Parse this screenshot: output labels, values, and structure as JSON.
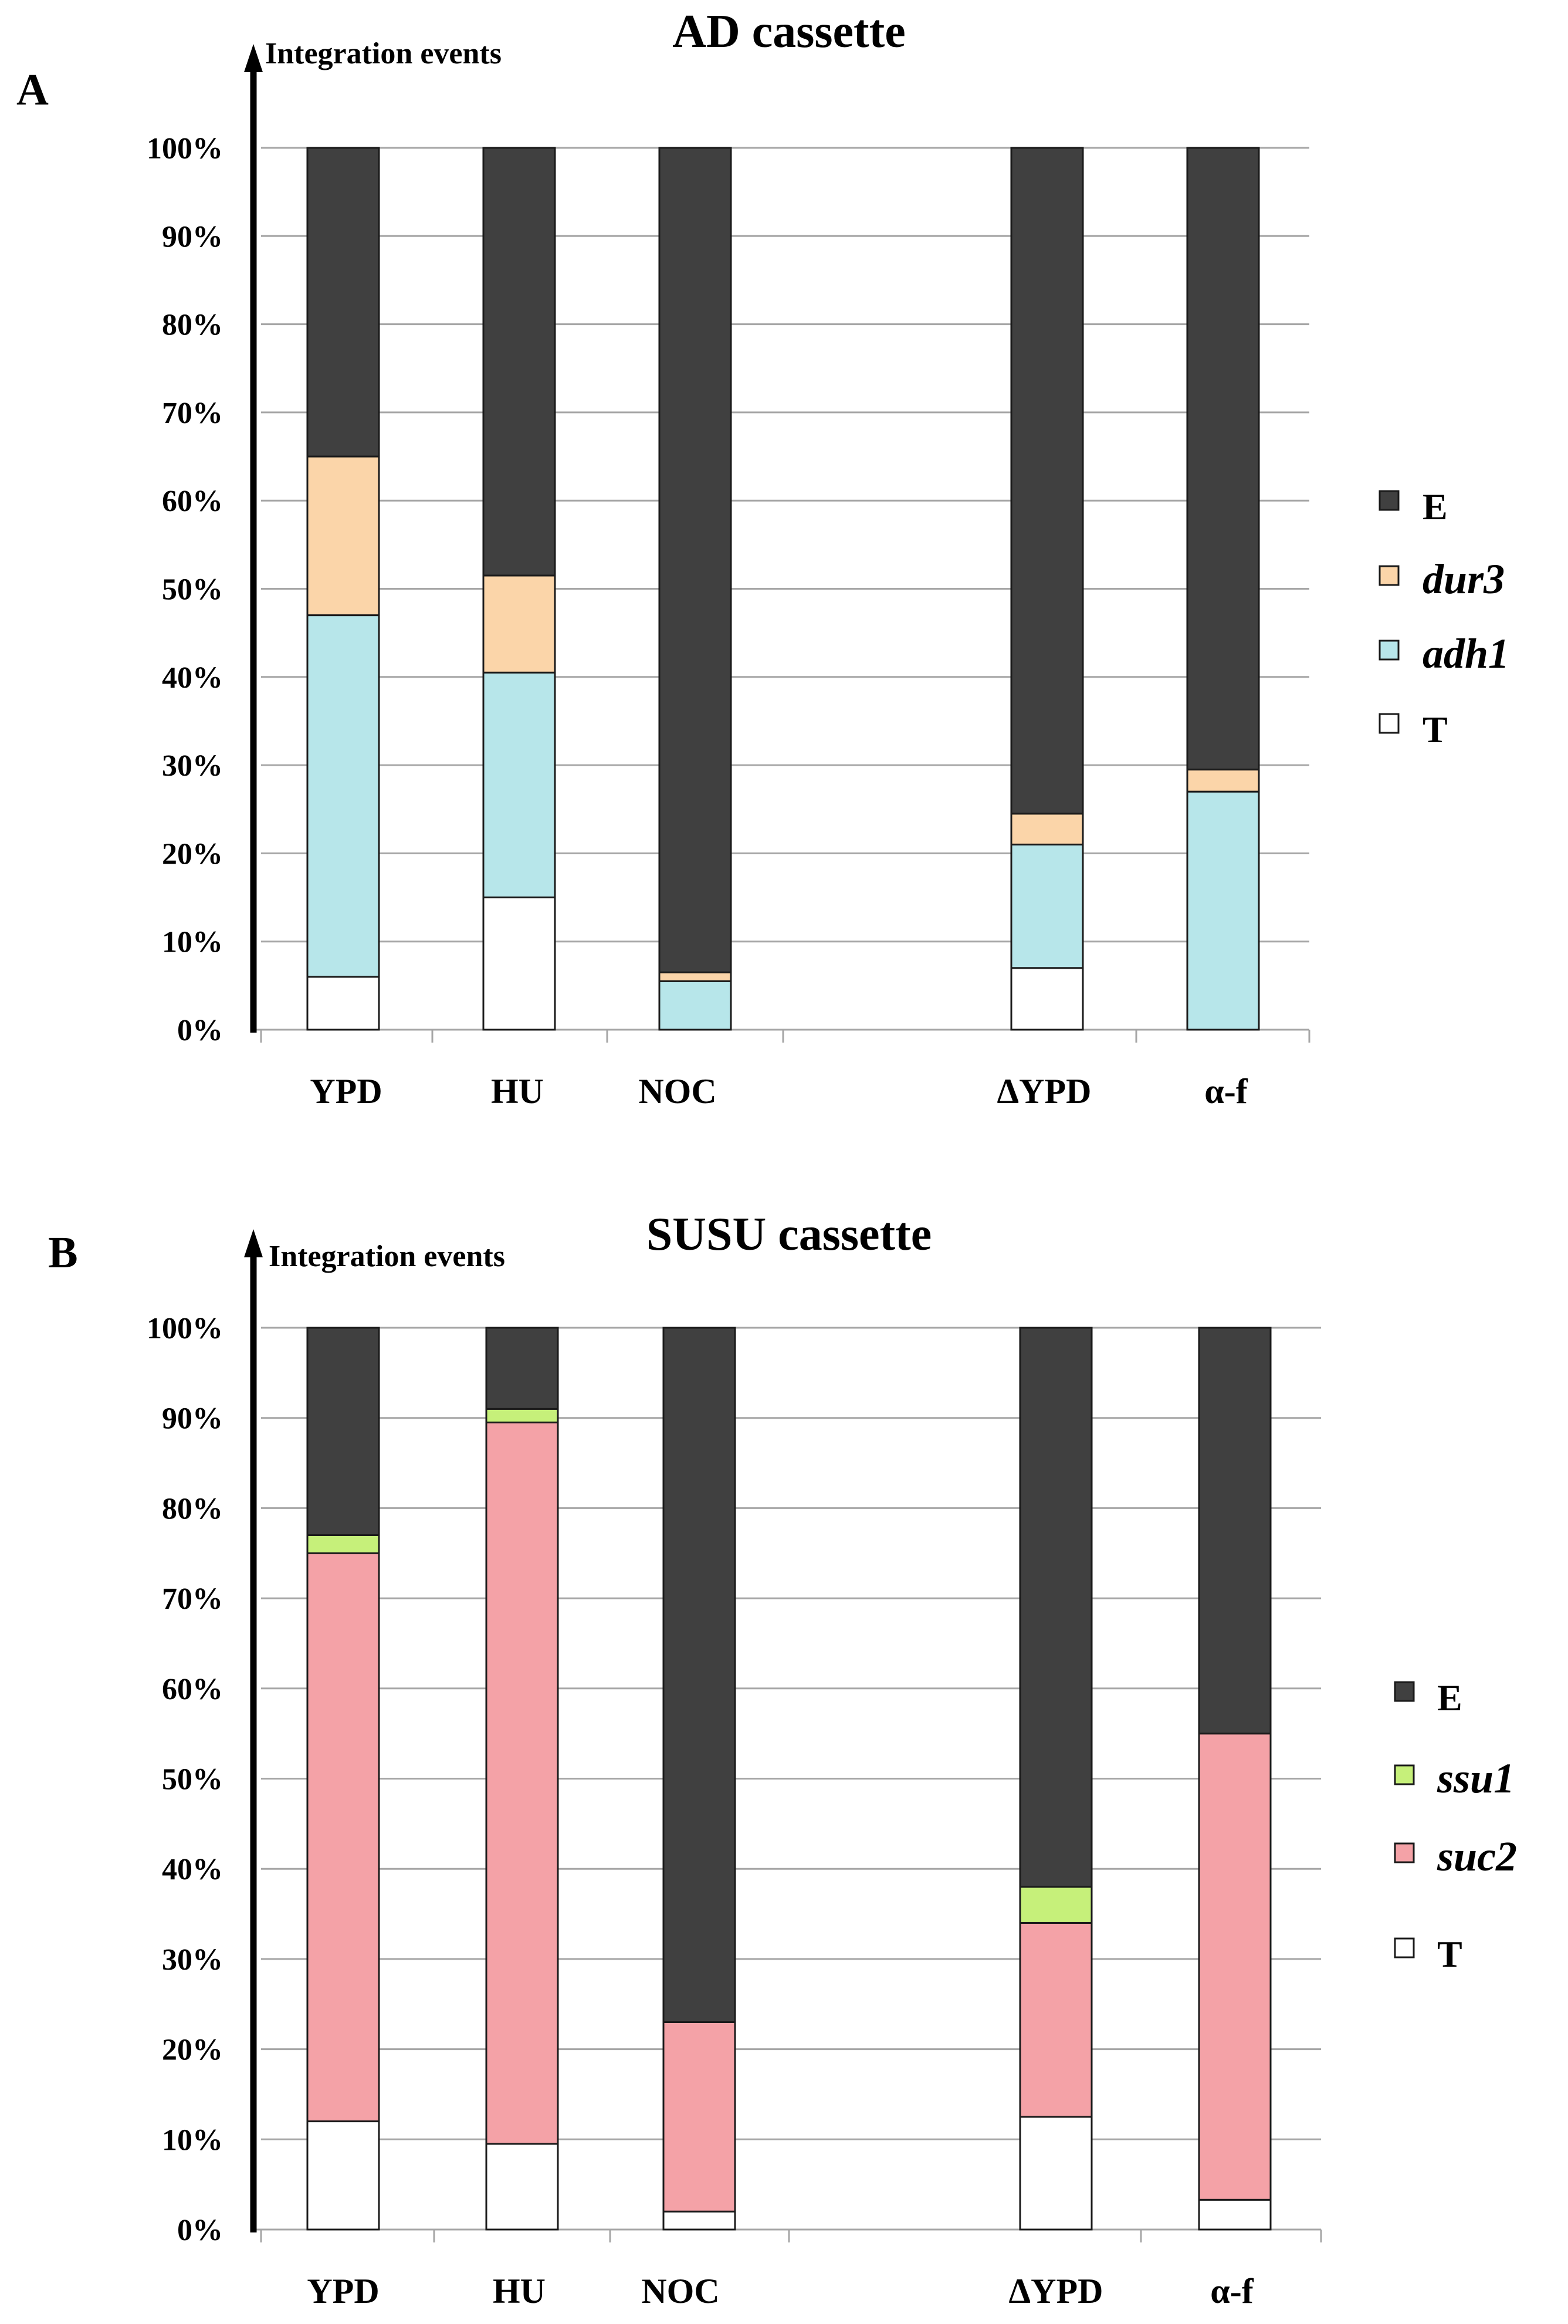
{
  "chart_data": [
    {
      "type": "stacked-bar",
      "panel": "A",
      "title": "AD cassette",
      "ylabel": "Integration events",
      "ylim": [
        0,
        100
      ],
      "yticks": [
        "0%",
        "10%",
        "20%",
        "30%",
        "40%",
        "50%",
        "60%",
        "70%",
        "80%",
        "90%",
        "100%"
      ],
      "categories": [
        "YPD",
        "HU",
        "NOC",
        "",
        "ΔYPD",
        "α-f"
      ],
      "series": [
        {
          "name": "T",
          "color": "#ffffff",
          "values": [
            6,
            15,
            0,
            null,
            7,
            0
          ]
        },
        {
          "name": "adh1",
          "color": "#b7e6ea",
          "values": [
            41,
            25.5,
            5.5,
            null,
            14,
            27
          ]
        },
        {
          "name": "dur3",
          "color": "#fbd5a9",
          "values": [
            18,
            11,
            1,
            null,
            3.5,
            2.5
          ]
        },
        {
          "name": "E",
          "color": "#404040",
          "values": [
            35,
            48.5,
            93.5,
            null,
            75.5,
            70.5
          ]
        }
      ],
      "legend": [
        {
          "label": "E",
          "style": "plain"
        },
        {
          "label": "dur3",
          "style": "italic"
        },
        {
          "label": "adh1",
          "style": "italic"
        },
        {
          "label": "T",
          "style": "plain"
        }
      ]
    },
    {
      "type": "stacked-bar",
      "panel": "B",
      "title": "SUSU cassette",
      "ylabel": "Integration events",
      "ylim": [
        0,
        100
      ],
      "yticks": [
        "0%",
        "10%",
        "20%",
        "30%",
        "40%",
        "50%",
        "60%",
        "70%",
        "80%",
        "90%",
        "100%"
      ],
      "categories": [
        "YPD",
        "HU",
        "NOC",
        "",
        "ΔYPD",
        "α-f"
      ],
      "series": [
        {
          "name": "T",
          "color": "#ffffff",
          "values": [
            12,
            9.5,
            2,
            null,
            12.5,
            3.3
          ]
        },
        {
          "name": "suc2",
          "color": "#f4a2a7",
          "values": [
            63,
            80,
            21,
            null,
            21.5,
            51.7
          ]
        },
        {
          "name": "ssu1",
          "color": "#c6f07a",
          "values": [
            2,
            1.5,
            0,
            null,
            4,
            0
          ]
        },
        {
          "name": "E",
          "color": "#404040",
          "values": [
            23,
            9,
            77,
            null,
            62,
            45
          ]
        }
      ],
      "legend": [
        {
          "label": "E",
          "style": "plain"
        },
        {
          "label": "ssu1",
          "style": "italic"
        },
        {
          "label": "suc2",
          "style": "italic"
        },
        {
          "label": "T",
          "style": "plain"
        }
      ]
    }
  ]
}
